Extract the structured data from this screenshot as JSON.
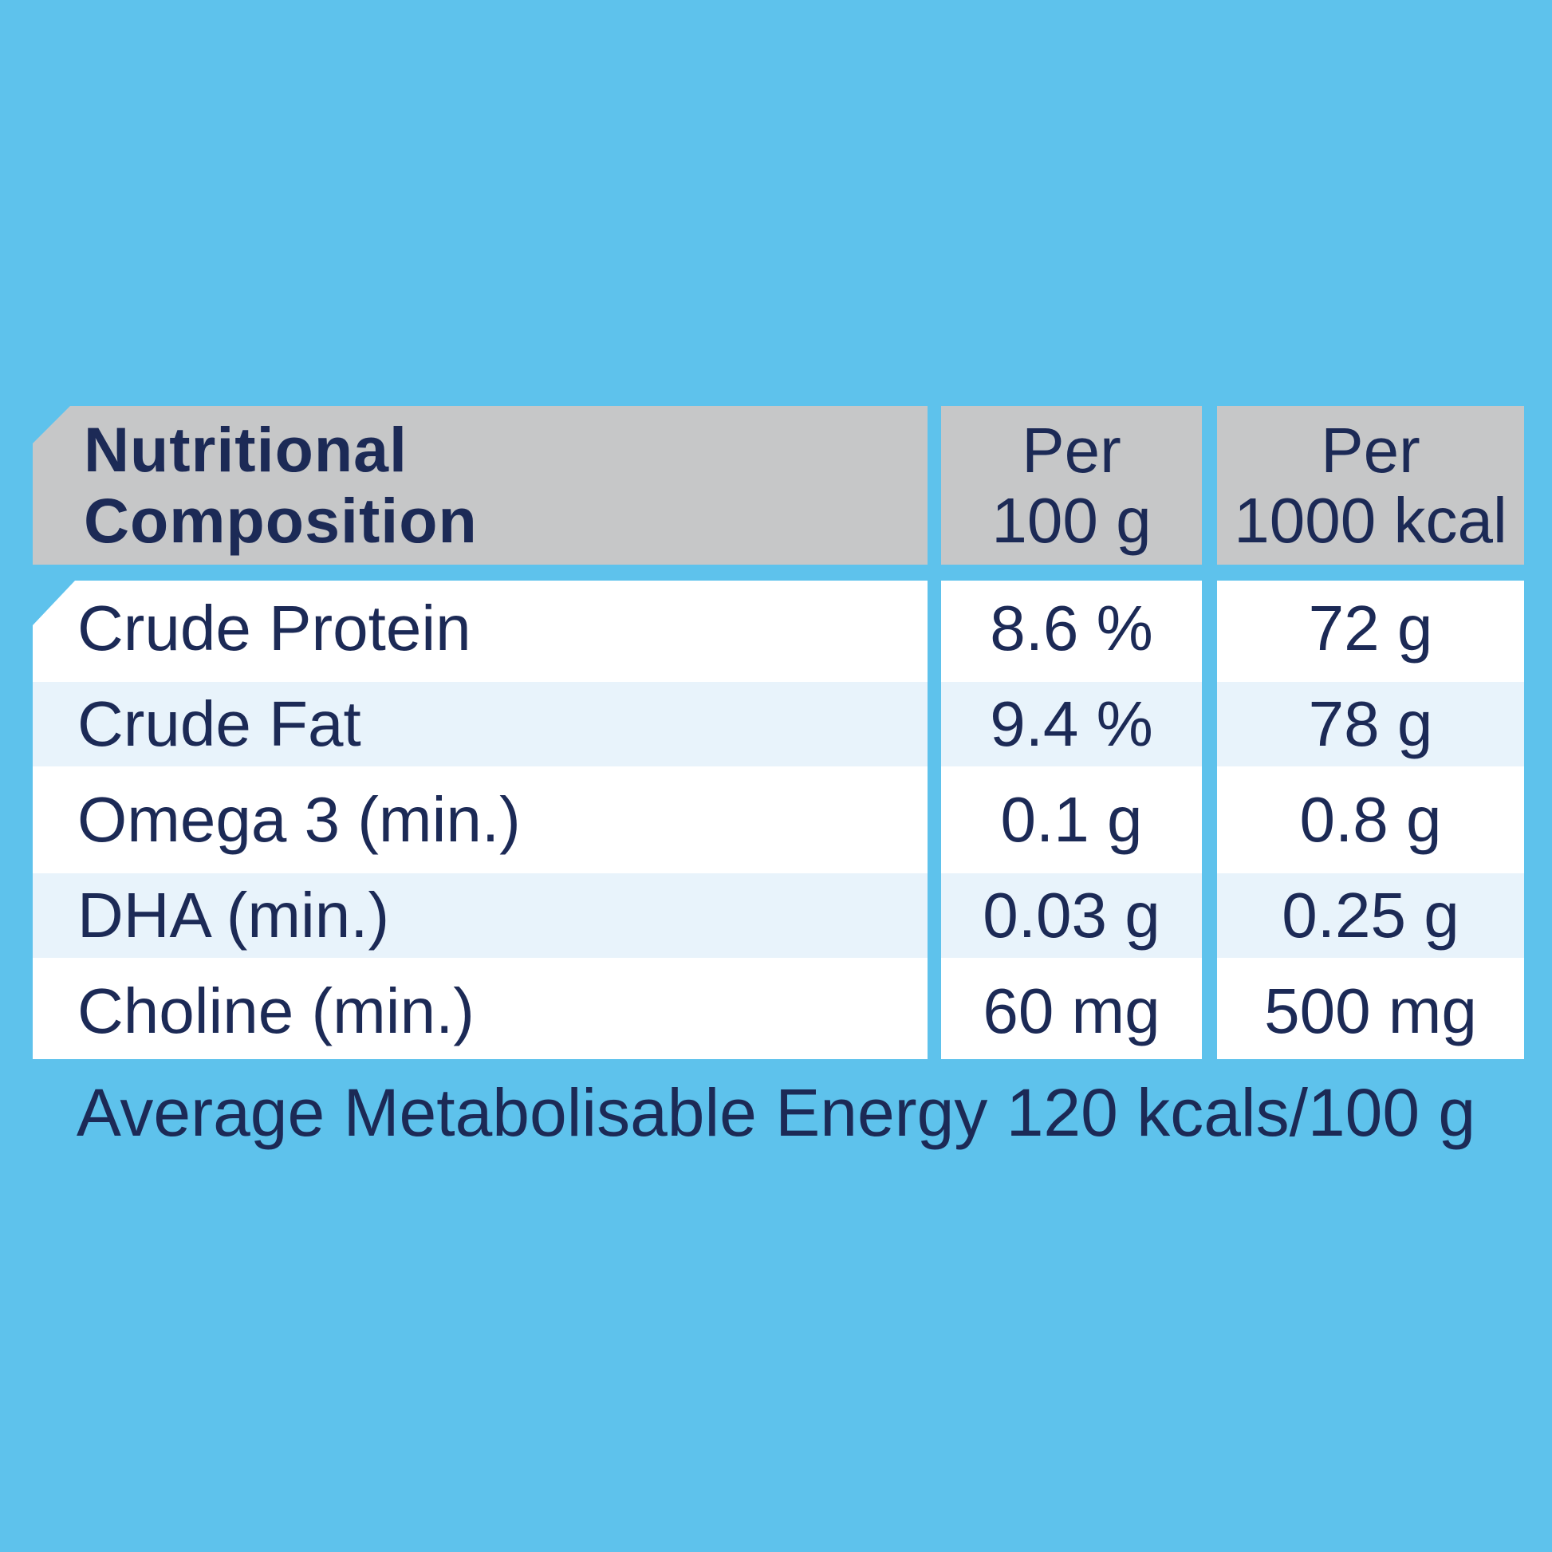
{
  "table": {
    "header": {
      "title_line1": "Nutritional",
      "title_line2": "Composition",
      "col_per_100g_line1": "Per",
      "col_per_100g_line2": "100 g",
      "col_per_1000kcal_line1": "Per",
      "col_per_1000kcal_line2": "1000 kcal"
    },
    "rows": [
      {
        "label": "Crude Protein",
        "per_100g": "8.6 %",
        "per_1000kcal": "72 g"
      },
      {
        "label": "Crude Fat",
        "per_100g": "9.4 %",
        "per_1000kcal": "78 g"
      },
      {
        "label": "Omega 3 (min.)",
        "per_100g": "0.1 g",
        "per_1000kcal": "0.8 g"
      },
      {
        "label": "DHA (min.)",
        "per_100g": "0.03 g",
        "per_1000kcal": "0.25 g"
      },
      {
        "label": "Choline (min.)",
        "per_100g": "60 mg",
        "per_1000kcal": "500 mg"
      }
    ],
    "footer": "Average Metabolisable Energy 120 kcals/100 g"
  },
  "colors": {
    "background": "#5ec2ec",
    "header_bg": "#c6c7c8",
    "row_white": "#ffffff",
    "row_tint": "#e8f3fb",
    "text_navy": "#1c2a56"
  }
}
